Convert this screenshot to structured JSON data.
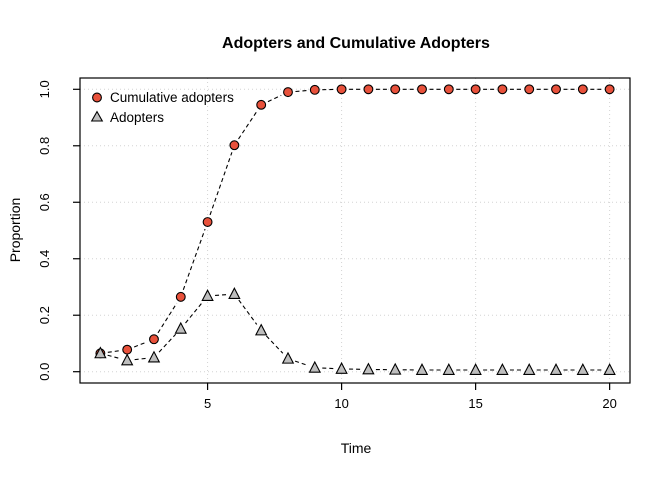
{
  "chart_data": {
    "type": "line",
    "title": "Adopters and Cumulative Adopters",
    "xlabel": "Time",
    "ylabel": "Proportion",
    "x": [
      1,
      2,
      3,
      4,
      5,
      6,
      7,
      8,
      9,
      10,
      11,
      12,
      13,
      14,
      15,
      16,
      17,
      18,
      19,
      20
    ],
    "series": [
      {
        "name": "Cumulative adopters",
        "marker": "circle",
        "marker_fill": "#e8513b",
        "marker_edge": "#000000",
        "line_style": "dashed",
        "values": [
          0.065,
          0.078,
          0.115,
          0.265,
          0.53,
          0.802,
          0.945,
          0.99,
          0.998,
          1,
          1,
          1,
          1,
          1,
          1,
          1,
          1,
          1,
          1,
          1
        ]
      },
      {
        "name": "Adopters",
        "marker": "triangle",
        "marker_fill": "#bebebe",
        "marker_edge": "#000000",
        "line_style": "dashed",
        "values": [
          0.065,
          0.04,
          0.05,
          0.152,
          0.268,
          0.275,
          0.146,
          0.046,
          0.014,
          0.01,
          0.008,
          0.007,
          0.006,
          0.006,
          0.006,
          0.006,
          0.006,
          0.006,
          0.006,
          0.006
        ]
      }
    ],
    "x_ticks": [
      5,
      10,
      15,
      20
    ],
    "x_tick_labels": [
      "5",
      "10",
      "15",
      "20"
    ],
    "y_ticks": [
      0.0,
      0.2,
      0.4,
      0.6,
      0.8,
      1.0
    ],
    "y_tick_labels": [
      "0.0",
      "0.2",
      "0.4",
      "0.6",
      "0.8",
      "1.0"
    ],
    "xlim": [
      0.24,
      20.76
    ],
    "ylim": [
      -0.04,
      1.04
    ],
    "grid": true,
    "grid_color": "#d3d3d3",
    "line_color": "#000000",
    "legend_position": "top-left"
  }
}
